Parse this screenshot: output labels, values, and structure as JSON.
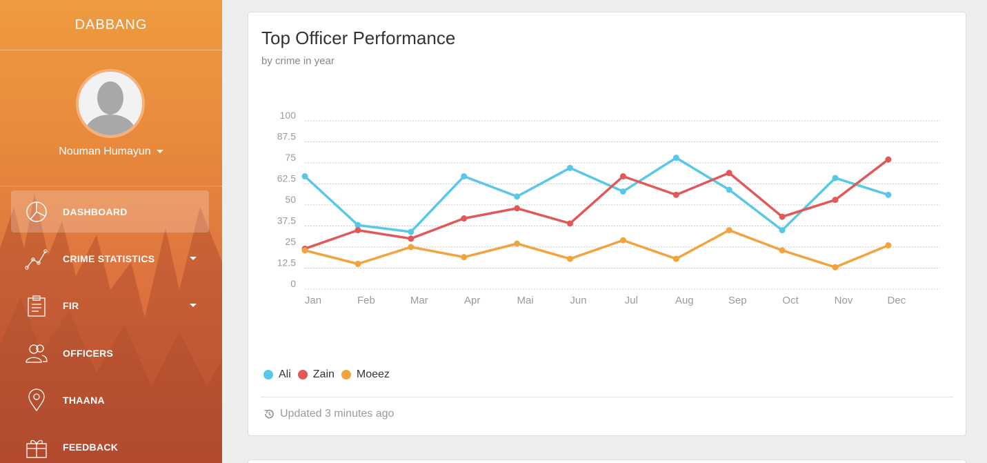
{
  "sidebar": {
    "brand": "DABBANG",
    "user_name": "Nouman Humayun",
    "items": [
      {
        "label": "DASHBOARD",
        "icon": "pie-chart-icon"
      },
      {
        "label": "CRIME STATISTICS",
        "icon": "line-chart-icon"
      },
      {
        "label": "FIR",
        "icon": "clipboard-icon"
      },
      {
        "label": "OFFICERS",
        "icon": "users-icon"
      },
      {
        "label": "THAANA",
        "icon": "location-pin-icon"
      },
      {
        "label": "FEEDBACK",
        "icon": "gift-icon"
      }
    ]
  },
  "card": {
    "title": "Top Officer Performance",
    "subtitle": "by crime in year",
    "footer": "Updated 3 minutes ago"
  },
  "chart_data": {
    "type": "line",
    "title": "Top Officer Performance",
    "subtitle": "by crime in year",
    "categories": [
      "Jan",
      "Feb",
      "Mar",
      "Apr",
      "Mai",
      "Jun",
      "Jul",
      "Aug",
      "Sep",
      "Oct",
      "Nov",
      "Dec"
    ],
    "ylim": [
      0,
      100
    ],
    "yticks": [
      "100",
      "87.5",
      "75",
      "62.5",
      "50",
      "37.5",
      "25",
      "12.5",
      "0"
    ],
    "grid": true,
    "legend_position": "bottom-left",
    "series": [
      {
        "name": "Ali",
        "color": "#59c7e8",
        "values": [
          67,
          38,
          34,
          67,
          55,
          72,
          58,
          78,
          59,
          35,
          66,
          56
        ]
      },
      {
        "name": "Zain",
        "color": "#e15858",
        "values": [
          24,
          35,
          30,
          42,
          48,
          39,
          67,
          56,
          69,
          43,
          53,
          77
        ]
      },
      {
        "name": "Moeez",
        "color": "#f1a33f",
        "values": [
          23,
          15,
          25,
          19,
          27,
          18,
          29,
          18,
          35,
          23,
          13,
          26
        ]
      }
    ]
  }
}
